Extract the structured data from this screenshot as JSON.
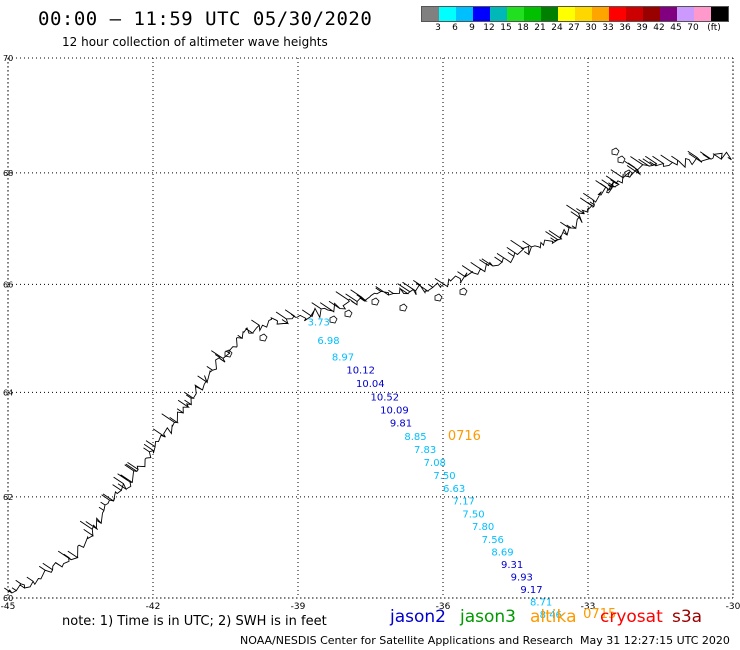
{
  "header": {
    "title": "00:00 – 11:59 UTC 05/30/2020",
    "subtitle": "12 hour collection of altimeter wave heights"
  },
  "colorbar": {
    "swatches": [
      "#808080",
      "#00ffff",
      "#00bfff",
      "#0000ff",
      "#00b8b8",
      "#20e020",
      "#00c000",
      "#008000",
      "#ffff00",
      "#ffd700",
      "#ffa500",
      "#ff0000",
      "#cc0000",
      "#990000",
      "#800080",
      "#cc99ff",
      "#ff99cc",
      "#000000"
    ],
    "labels": [
      "3",
      "6",
      "9",
      "12",
      "15",
      "18",
      "21",
      "24",
      "27",
      "30",
      "33",
      "36",
      "39",
      "42",
      "45",
      "70",
      "(ft)"
    ]
  },
  "map": {
    "lon_ticks": [
      "-45",
      "-42",
      "-39",
      "-36",
      "-33",
      "-30"
    ],
    "lat_ticks": [
      "70",
      "68",
      "66",
      "64",
      "62",
      "60"
    ],
    "lon_range": [
      -45,
      -30
    ],
    "lat_range": [
      60,
      70
    ],
    "gridlines": true,
    "coastline": "east-greenland"
  },
  "chart_data": {
    "type": "scatter",
    "title": "12 hour collection of altimeter wave heights",
    "xlabel": "",
    "ylabel": "",
    "xlim": [
      -45,
      -30
    ],
    "ylim": [
      60,
      70
    ],
    "tracks": [
      {
        "points": [
          {
            "label": "3.73",
            "lat": 65.25,
            "lon": -38.8,
            "color": "#00bfff"
          },
          {
            "label": "6.98",
            "lat": 64.9,
            "lon": -38.6,
            "color": "#00bfff"
          },
          {
            "label": "8.97",
            "lat": 64.6,
            "lon": -38.3,
            "color": "#00bfff"
          },
          {
            "label": "10.12",
            "lat": 64.35,
            "lon": -38.0,
            "color": "#0000cc"
          },
          {
            "label": "10.04",
            "lat": 64.1,
            "lon": -37.8,
            "color": "#0000cc"
          },
          {
            "label": "10.52",
            "lat": 63.85,
            "lon": -37.5,
            "color": "#0000cc"
          },
          {
            "label": "10.09",
            "lat": 63.6,
            "lon": -37.3,
            "color": "#0000cc"
          },
          {
            "label": "9.81",
            "lat": 63.35,
            "lon": -37.1,
            "color": "#0000cc"
          },
          {
            "label": "8.85",
            "lat": 63.1,
            "lon": -36.8,
            "color": "#00bfff"
          },
          {
            "label": "7.83",
            "lat": 62.85,
            "lon": -36.6,
            "color": "#00bfff"
          },
          {
            "label": "7.08",
            "lat": 62.6,
            "lon": -36.4,
            "color": "#00bfff"
          },
          {
            "label": "7.50",
            "lat": 62.35,
            "lon": -36.2,
            "color": "#00bfff"
          },
          {
            "label": "6.63",
            "lat": 62.1,
            "lon": -36.0,
            "color": "#00bfff"
          },
          {
            "label": "7.17",
            "lat": 61.85,
            "lon": -35.8,
            "color": "#00bfff"
          },
          {
            "label": "7.50",
            "lat": 61.6,
            "lon": -35.6,
            "color": "#00bfff"
          },
          {
            "label": "7.80",
            "lat": 61.35,
            "lon": -35.4,
            "color": "#00bfff"
          },
          {
            "label": "7.56",
            "lat": 61.1,
            "lon": -35.2,
            "color": "#00bfff"
          },
          {
            "label": "8.69",
            "lat": 60.85,
            "lon": -35.0,
            "color": "#00bfff"
          },
          {
            "label": "9.31",
            "lat": 60.6,
            "lon": -34.8,
            "color": "#0000cc"
          },
          {
            "label": "9.93",
            "lat": 60.35,
            "lon": -34.6,
            "color": "#0000cc"
          },
          {
            "label": "9.17",
            "lat": 60.1,
            "lon": -34.4,
            "color": "#0000cc"
          },
          {
            "label": "8.71",
            "lat": 59.85,
            "lon": -34.2,
            "color": "#00bfff"
          },
          {
            "label": "8.46",
            "lat": 59.6,
            "lon": -34.0,
            "color": "#00bfff"
          }
        ]
      }
    ],
    "pass_times": [
      {
        "label": "0716",
        "lat": 63.1,
        "lon": -35.9,
        "color": "#ff9900"
      },
      {
        "label": "0715",
        "lat": 59.6,
        "lon": -33.1,
        "color": "#ff9900"
      }
    ]
  },
  "note": "note: 1) Time is in UTC; 2) SWH is in feet",
  "legend": [
    {
      "label": "jason2",
      "color": "#0000cc"
    },
    {
      "label": "jason3",
      "color": "#009900"
    },
    {
      "label": "altika",
      "color": "#ff9900"
    },
    {
      "label": "cryosat",
      "color": "#ff0000"
    },
    {
      "label": "s3a",
      "color": "#990000"
    }
  ],
  "footer": {
    "credit": "NOAA/NESDIS Center for Satellite Applications and Research",
    "timestamp": "May 31 12:27:15 UTC 2020"
  }
}
